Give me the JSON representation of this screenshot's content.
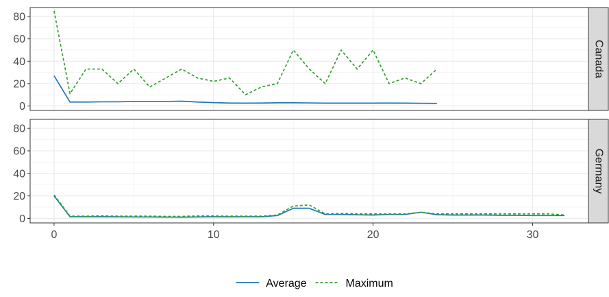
{
  "chart_data": {
    "type": "line",
    "facets": [
      {
        "label": "Canada",
        "series": [
          {
            "name": "Average",
            "color": "#1f78b4",
            "dash": "solid",
            "x": [
              0,
              1,
              2,
              3,
              4,
              5,
              6,
              7,
              8,
              9,
              10,
              11,
              12,
              13,
              14,
              15,
              16,
              17,
              18,
              19,
              20,
              21,
              22,
              23,
              24
            ],
            "values": [
              27,
              3.5,
              3.5,
              3.7,
              3.7,
              4,
              4,
              4,
              4.3,
              3.5,
              3,
              2.6,
              2.5,
              2.6,
              2.8,
              2.8,
              2.7,
              2.5,
              2.5,
              2.5,
              2.5,
              2.6,
              2.5,
              2.4,
              2.3
            ]
          },
          {
            "name": "Maximum",
            "color": "#33a02c",
            "dash": "dashed",
            "x": [
              0,
              1,
              2,
              3,
              4,
              5,
              6,
              7,
              8,
              9,
              10,
              11,
              12,
              13,
              14,
              15,
              16,
              17,
              18,
              19,
              20,
              21,
              22,
              23,
              24
            ],
            "values": [
              85,
              11,
              33,
              33,
              20,
              33,
              17,
              25,
              33,
              25,
              22,
              25,
              10,
              17,
              20,
              50,
              33,
              20,
              50,
              33,
              50,
              20,
              25,
              20,
              33
            ]
          }
        ]
      },
      {
        "label": "Germany",
        "series": [
          {
            "name": "Average",
            "color": "#1f78b4",
            "dash": "solid",
            "x": [
              0,
              1,
              2,
              3,
              4,
              5,
              6,
              7,
              8,
              9,
              10,
              11,
              12,
              13,
              14,
              15,
              16,
              17,
              18,
              19,
              20,
              21,
              22,
              23,
              24,
              25,
              26,
              27,
              28,
              29,
              30,
              31,
              32
            ],
            "values": [
              20,
              1.5,
              1.5,
              1.5,
              1.4,
              1.3,
              1.3,
              1.2,
              1.1,
              1.3,
              1.5,
              1.4,
              1.5,
              1.5,
              2.5,
              9,
              9,
              3.5,
              3.5,
              3.2,
              3,
              3.5,
              3.5,
              5.5,
              3.3,
              3,
              3,
              3,
              2.8,
              2.8,
              2.5,
              2.5,
              2.5
            ]
          },
          {
            "name": "Maximum",
            "color": "#33a02c",
            "dash": "dashed",
            "x": [
              0,
              1,
              2,
              3,
              4,
              5,
              6,
              7,
              8,
              9,
              10,
              11,
              12,
              13,
              14,
              15,
              16,
              17,
              18,
              19,
              20,
              21,
              22,
              23,
              24,
              25,
              26,
              27,
              28,
              29,
              30,
              31,
              32
            ],
            "values": [
              21,
              2,
              2,
              2.3,
              2,
              2,
              2,
              1.8,
              1.8,
              2.2,
              2.2,
              2,
              2,
              2,
              3,
              11,
              12,
              4,
              4.5,
              4,
              4,
              4,
              4,
              5.5,
              4,
              4,
              4,
              4,
              4,
              4,
              4,
              4,
              3
            ]
          }
        ]
      }
    ],
    "x_ticks": [
      0,
      10,
      20,
      30
    ],
    "x_tick_labels": [
      "0",
      "10",
      "20",
      "30"
    ],
    "y_ticks": [
      0,
      20,
      40,
      60,
      80
    ],
    "y_tick_labels": [
      "0",
      "20",
      "40",
      "60",
      "80"
    ],
    "xlim": [
      -1.5,
      33.5
    ],
    "ylim": [
      -4,
      88
    ],
    "grid": true,
    "legend": {
      "position": "bottom",
      "items": [
        "Average",
        "Maximum"
      ]
    }
  }
}
